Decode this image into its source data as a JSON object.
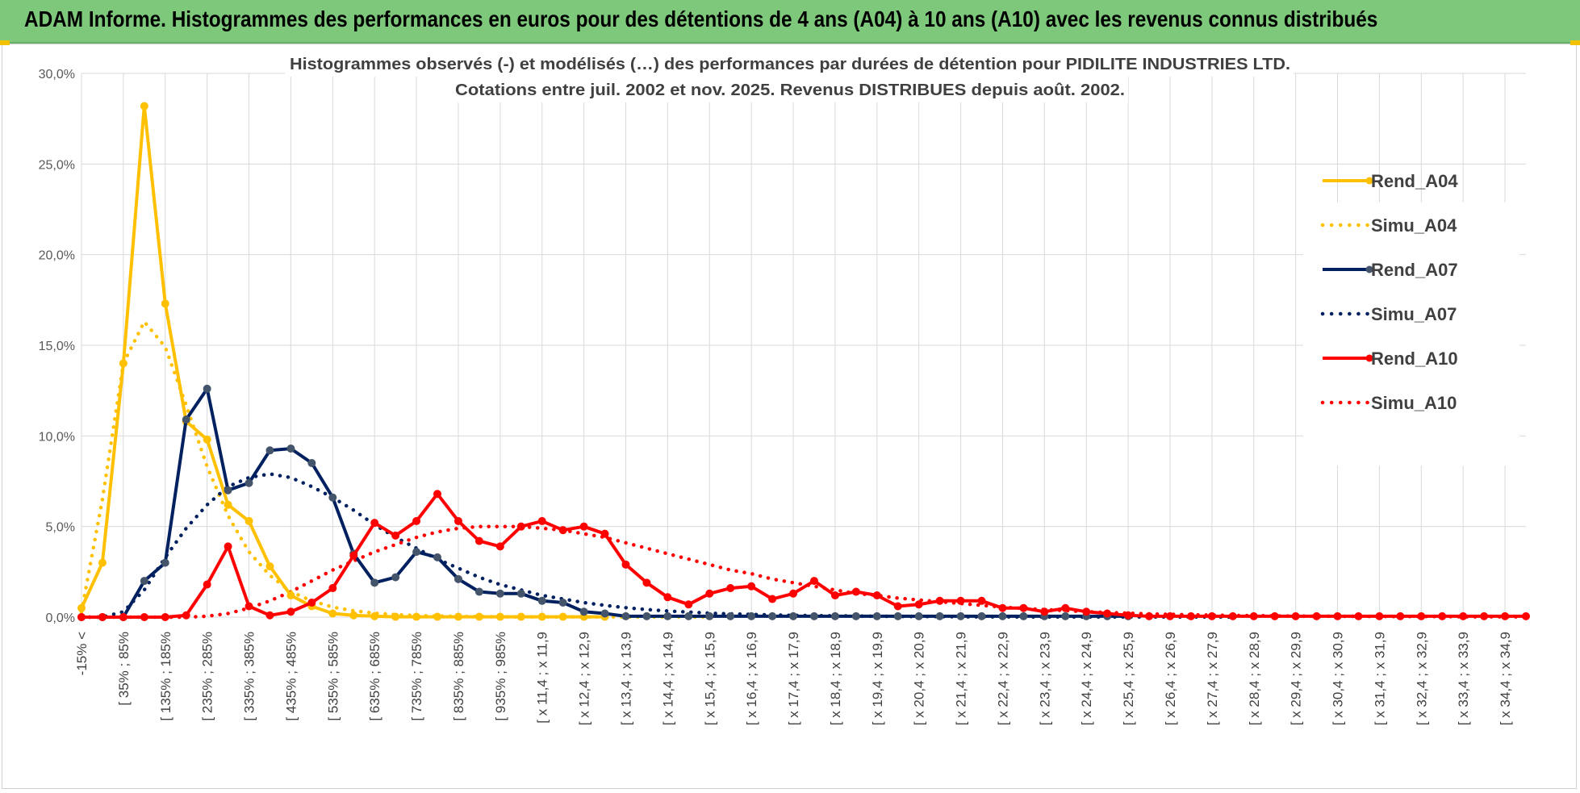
{
  "banner": {
    "title": "ADAM Informe. Histogrammes des performances en euros pour des détentions de 4 ans (A04) à 10 ans (A10) avec les revenus connus distribués"
  },
  "chart_data": {
    "type": "line",
    "title": "Histogrammes observés (-) et modélisés (…) des performances par durées de détention pour PIDILITE INDUSTRIES LTD.",
    "subtitle": "Cotations entre juil. 2002 et nov. 2025. Revenus DISTRIBUES depuis août. 2002.",
    "xlabel": "",
    "ylabel": "",
    "ylim": [
      0,
      30
    ],
    "yticks": [
      "0,0%",
      "5,0%",
      "10,0%",
      "15,0%",
      "20,0%",
      "25,0%",
      "30,0%"
    ],
    "legend_position": "right",
    "num_points": 70,
    "x_tick_labels": [
      "-15% <",
      "[ 35% ; 85%",
      "[ 135% ; 185%",
      "[ 235% ; 285%",
      "[ 335% ; 385%",
      "[ 435% ; 485%",
      "[ 535% ; 585%",
      "[ 635% ; 685%",
      "[ 735% ; 785%",
      "[ 835% ; 885%",
      "[ 935% ; 985%",
      "[ x 11,4 ; x 11,9",
      "[ x 12,4 ; x 12,9",
      "[ x 13,4 ; x 13,9",
      "[ x 14,4 ; x 14,9",
      "[ x 15,4 ; x 15,9",
      "[ x 16,4 ; x 16,9",
      "[ x 17,4 ; x 17,9",
      "[ x 18,4 ; x 18,9",
      "[ x 19,4 ; x 19,9",
      "[ x 20,4 ; x 20,9",
      "[ x 21,4 ; x 21,9",
      "[ x 22,4 ; x 22,9",
      "[ x 23,4 ; x 23,9",
      "[ x 24,4 ; x 24,9",
      "[ x 25,4 ; x 25,9",
      "[ x 26,4 ; x 26,9",
      "[ x 27,4 ; x 27,9",
      "[ x 28,4 ; x 28,9",
      "[ x 29,4 ; x 29,9",
      "[ x 30,4 ; x 30,9",
      "[ x 31,4 ; x 31,9",
      "[ x 32,4 ; x 32,9",
      "[ x 33,4 ; x 33,9",
      "[ x 34,4 ; x 34,9"
    ],
    "series": [
      {
        "name": "Rend_A04",
        "style": "solid",
        "color": "#FFC000",
        "markers": true,
        "end_index": 25,
        "values": [
          0.5,
          3.0,
          14.0,
          28.2,
          17.3,
          10.8,
          9.8,
          6.2,
          5.3,
          2.8,
          1.2,
          0.6,
          0.2,
          0.1,
          0.05,
          0.02,
          0.02,
          0.02,
          0.02,
          0.02,
          0.02,
          0.02,
          0.02,
          0.02,
          0.02,
          0.02
        ]
      },
      {
        "name": "Simu_A04",
        "style": "dotted",
        "color": "#FFC000",
        "markers": false,
        "end_index": 30,
        "values": [
          0.3,
          6.5,
          14.0,
          16.3,
          14.9,
          11.7,
          8.3,
          5.6,
          3.6,
          2.3,
          1.4,
          0.9,
          0.55,
          0.35,
          0.22,
          0.14,
          0.09,
          0.06,
          0.04,
          0.03,
          0.02,
          0.01,
          0.01,
          0.01,
          0.01,
          0.01,
          0.01,
          0.01,
          0.01,
          0.01,
          0.01
        ]
      },
      {
        "name": "Rend_A07",
        "style": "solid",
        "color": "#002060",
        "markers": true,
        "end_index": 50,
        "values": [
          0,
          0,
          0,
          2.0,
          3.0,
          10.9,
          12.6,
          7.0,
          7.4,
          9.2,
          9.3,
          8.5,
          6.6,
          3.5,
          1.9,
          2.2,
          3.6,
          3.3,
          2.1,
          1.4,
          1.3,
          1.3,
          0.9,
          0.8,
          0.3,
          0.2,
          0.05,
          0.05,
          0.05,
          0.05,
          0.05,
          0.05,
          0.05,
          0.05,
          0.05,
          0.05,
          0.05,
          0.05,
          0.05,
          0.05,
          0.05,
          0.05,
          0.05,
          0.05,
          0.05,
          0.05,
          0.05,
          0.05,
          0.05,
          0.05,
          0.05
        ]
      },
      {
        "name": "Simu_A07",
        "style": "dotted",
        "color": "#002060",
        "markers": false,
        "end_index": 55,
        "values": [
          0,
          0,
          0.3,
          1.5,
          3.3,
          4.9,
          6.2,
          7.2,
          7.7,
          7.9,
          7.7,
          7.2,
          6.6,
          5.9,
          5.1,
          4.4,
          3.8,
          3.2,
          2.7,
          2.2,
          1.8,
          1.5,
          1.2,
          1.0,
          0.8,
          0.65,
          0.52,
          0.42,
          0.34,
          0.28,
          0.22,
          0.18,
          0.15,
          0.12,
          0.1,
          0.08,
          0.07,
          0.06,
          0.05,
          0.04,
          0.03,
          0.03,
          0.02,
          0.02,
          0.02,
          0.01,
          0.01,
          0.01,
          0.01,
          0.01,
          0.01,
          0.01,
          0.01,
          0.01,
          0.01,
          0.01
        ]
      },
      {
        "name": "Rend_A10",
        "style": "solid",
        "color": "#FF0000",
        "markers": true,
        "end_index": 69,
        "values": [
          0,
          0,
          0,
          0,
          0,
          0.1,
          1.8,
          3.9,
          0.6,
          0.1,
          0.3,
          0.8,
          1.6,
          3.4,
          5.2,
          4.5,
          5.3,
          6.8,
          5.3,
          4.2,
          3.9,
          5.0,
          5.3,
          4.8,
          5.0,
          4.6,
          2.9,
          1.9,
          1.1,
          0.7,
          1.3,
          1.6,
          1.7,
          1.0,
          1.3,
          2.0,
          1.2,
          1.4,
          1.2,
          0.6,
          0.7,
          0.9,
          0.9,
          0.9,
          0.5,
          0.5,
          0.3,
          0.5,
          0.3,
          0.2,
          0.1,
          0.05,
          0.05,
          0.05,
          0.05,
          0.05,
          0.05,
          0.05,
          0.05,
          0.05,
          0.05,
          0.05,
          0.05,
          0.05,
          0.05,
          0.05,
          0.05,
          0.05,
          0.05,
          0.05
        ]
      },
      {
        "name": "Simu_A10",
        "style": "dotted",
        "color": "#FF0000",
        "markers": false,
        "end_index": 69,
        "values": [
          0,
          0,
          0,
          0,
          0,
          0,
          0.05,
          0.2,
          0.5,
          0.9,
          1.4,
          2.0,
          2.6,
          3.1,
          3.6,
          4.0,
          4.4,
          4.7,
          4.9,
          5.0,
          5.0,
          5.0,
          4.9,
          4.8,
          4.6,
          4.4,
          4.1,
          3.8,
          3.5,
          3.2,
          2.9,
          2.6,
          2.4,
          2.1,
          1.9,
          1.7,
          1.5,
          1.3,
          1.2,
          1.05,
          0.95,
          0.85,
          0.75,
          0.65,
          0.55,
          0.48,
          0.42,
          0.36,
          0.3,
          0.26,
          0.22,
          0.18,
          0.15,
          0.13,
          0.11,
          0.09,
          0.08,
          0.07,
          0.06,
          0.05,
          0.05,
          0.04,
          0.04,
          0.03,
          0.03,
          0.03,
          0.02,
          0.02,
          0.02,
          0.02
        ]
      }
    ]
  }
}
